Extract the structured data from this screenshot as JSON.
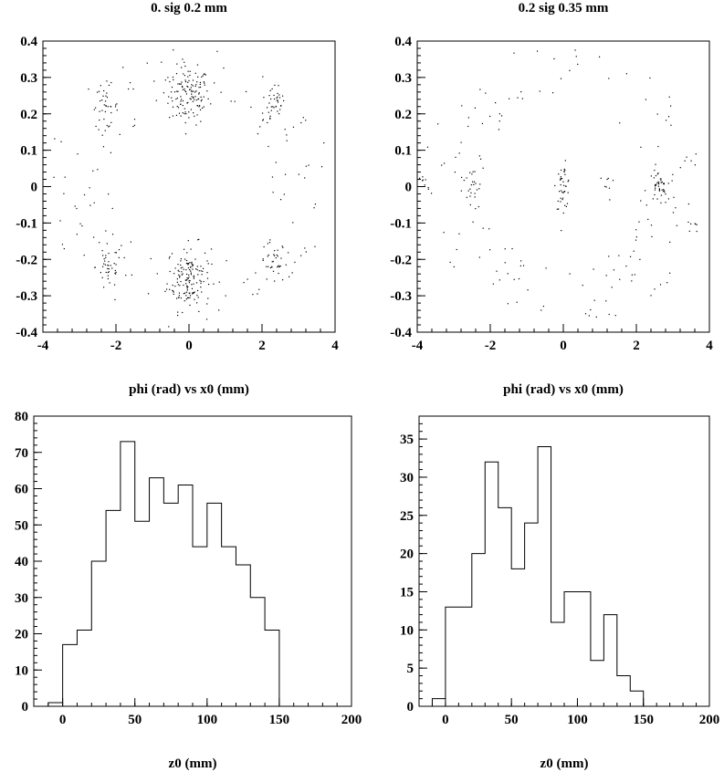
{
  "chart_data": [
    {
      "type": "scatter",
      "title": "0.  sig  0.2 mm",
      "xlabel": "phi (rad) vs x0 (mm)",
      "ylabel": "",
      "xlim": [
        -4,
        4
      ],
      "ylim": [
        -0.4,
        0.4
      ],
      "xticks": [
        -4,
        -2,
        0,
        2,
        4
      ],
      "yticks": [
        -0.4,
        -0.3,
        -0.2,
        -0.1,
        0,
        0.1,
        0.2,
        0.3,
        0.4
      ],
      "clusters": [
        {
          "x": 0.0,
          "y": 0.25,
          "sx": 0.28,
          "sy": 0.04,
          "n": 130
        },
        {
          "x": 0.0,
          "y": -0.25,
          "sx": 0.3,
          "sy": 0.045,
          "n": 150
        },
        {
          "x": -2.3,
          "y": 0.22,
          "sx": 0.18,
          "sy": 0.03,
          "n": 40
        },
        {
          "x": 2.3,
          "y": 0.22,
          "sx": 0.18,
          "sy": 0.03,
          "n": 35
        },
        {
          "x": -2.2,
          "y": -0.22,
          "sx": 0.18,
          "sy": 0.03,
          "n": 40
        },
        {
          "x": 2.3,
          "y": -0.21,
          "sx": 0.18,
          "sy": 0.03,
          "n": 35
        }
      ],
      "background_points": 120
    },
    {
      "type": "scatter",
      "title": "0.2  sig  0.35 mm",
      "xlabel": "phi (rad) vs x0 (mm)",
      "ylabel": "",
      "xlim": [
        -4,
        4
      ],
      "ylim": [
        -0.4,
        0.4
      ],
      "xticks": [
        -4,
        -2,
        0,
        2,
        4
      ],
      "yticks": [
        -0.4,
        -0.3,
        -0.2,
        -0.1,
        0,
        0.1,
        0.2,
        0.3,
        0.4
      ],
      "clusters": [
        {
          "x": 0.0,
          "y": 0.0,
          "sx": 0.1,
          "sy": 0.03,
          "n": 40
        },
        {
          "x": 2.6,
          "y": 0.0,
          "sx": 0.12,
          "sy": 0.02,
          "n": 40
        },
        {
          "x": -2.5,
          "y": 0.0,
          "sx": 0.15,
          "sy": 0.025,
          "n": 20
        },
        {
          "x": -3.8,
          "y": 0.0,
          "sx": 0.1,
          "sy": 0.02,
          "n": 10
        },
        {
          "x": 1.2,
          "y": 0.0,
          "sx": 0.1,
          "sy": 0.02,
          "n": 8
        }
      ],
      "background_points": 150
    },
    {
      "type": "bar",
      "title": "",
      "xlabel": "z0 (mm)",
      "ylabel": "",
      "xlim": [
        -20,
        200
      ],
      "ylim": [
        0,
        80
      ],
      "xticks": [
        0,
        50,
        100,
        150,
        200
      ],
      "yticks": [
        0,
        10,
        20,
        30,
        40,
        50,
        60,
        70,
        80
      ],
      "bin_edges": [
        -10,
        0,
        10,
        20,
        30,
        40,
        50,
        60,
        70,
        80,
        90,
        100,
        110,
        120,
        130,
        140,
        150
      ],
      "values": [
        1,
        17,
        21,
        40,
        54,
        73,
        51,
        63,
        56,
        61,
        44,
        56,
        44,
        39,
        30,
        21
      ]
    },
    {
      "type": "bar",
      "title": "",
      "xlabel": "z0 (mm)",
      "ylabel": "",
      "xlim": [
        -20,
        200
      ],
      "ylim": [
        0,
        38
      ],
      "xticks": [
        0,
        50,
        100,
        150,
        200
      ],
      "yticks": [
        0,
        5,
        10,
        15,
        20,
        25,
        30,
        35
      ],
      "bin_edges": [
        -10,
        0,
        10,
        20,
        30,
        40,
        50,
        60,
        70,
        80,
        90,
        100,
        110,
        120,
        130,
        140,
        150
      ],
      "values": [
        1,
        13,
        13,
        20,
        32,
        26,
        18,
        24,
        34,
        11,
        15,
        15,
        6,
        12,
        4,
        2
      ]
    }
  ]
}
